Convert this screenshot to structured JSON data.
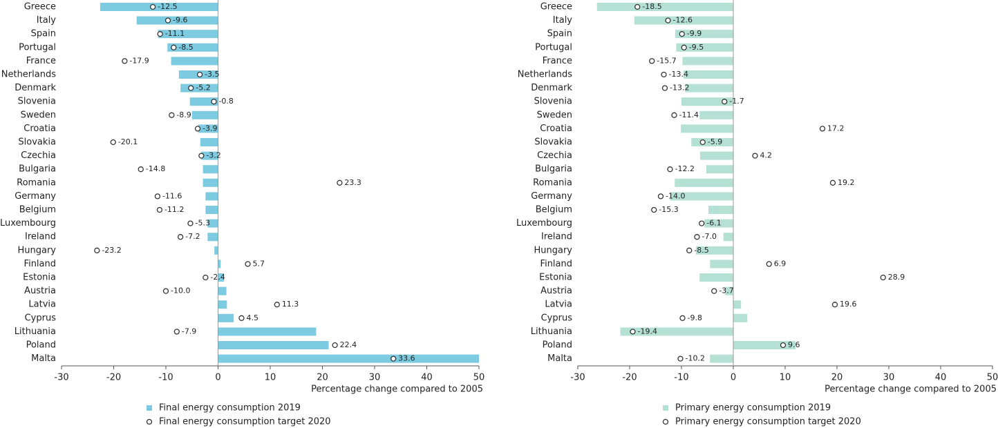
{
  "chart_data": [
    {
      "type": "hbar",
      "xlabel": "Percentage change compared to 2005",
      "categories": [
        "Greece",
        "Italy",
        "Spain",
        "Portugal",
        "France",
        "Netherlands",
        "Denmark",
        "Slovenia",
        "Sweden",
        "Croatia",
        "Slovakia",
        "Czechia",
        "Bulgaria",
        "Romania",
        "Germany",
        "Belgium",
        "Luxembourg",
        "Ireland",
        "Hungary",
        "Finland",
        "Estonia",
        "Austria",
        "Latvia",
        "Cyprus",
        "Lithuania",
        "Poland",
        "Malta"
      ],
      "series": [
        {
          "name": "Final energy consumption 2019",
          "color": "#7dcbe0",
          "marker": "bar",
          "values": [
            -22.6,
            -15.6,
            -11.5,
            -9.7,
            -9.0,
            -7.5,
            -7.2,
            -5.4,
            -5.0,
            -3.8,
            -3.4,
            -3.2,
            -2.9,
            -2.9,
            -2.4,
            -2.4,
            -2.0,
            -2.0,
            -0.7,
            0.5,
            1.1,
            1.6,
            1.7,
            3.0,
            18.8,
            21.2,
            50.0
          ]
        },
        {
          "name": "Final energy consumption target 2020",
          "color": "#333333",
          "marker": "circle",
          "values": [
            -12.5,
            -9.6,
            -11.1,
            -8.5,
            -17.9,
            -3.5,
            -5.2,
            -0.8,
            -8.9,
            -3.9,
            -20.1,
            -3.2,
            -14.8,
            23.3,
            -11.6,
            -11.2,
            -5.3,
            -7.2,
            -23.2,
            5.7,
            -2.4,
            -10.0,
            11.3,
            4.5,
            -7.9,
            22.4,
            33.6
          ],
          "value_labels": [
            "-12.5",
            "-9.6",
            "-11.1",
            "-8.5",
            "-17.9",
            "-3.5",
            "-5.2",
            "-0.8",
            "-8.9",
            "-3.9",
            "-20.1",
            "-3.2",
            "-14.8",
            "23.3",
            "-11.6",
            "-11.2",
            "-5.3",
            "-7.2",
            "-23.2",
            "5.7",
            "-2.4",
            "-10.0",
            "11.3",
            "4.5",
            "-7.9",
            "22.4",
            "33.6"
          ]
        }
      ],
      "xlim": [
        -30,
        50
      ],
      "xticks": [
        -30,
        -20,
        -10,
        0,
        10,
        20,
        30,
        40,
        50
      ]
    },
    {
      "type": "hbar",
      "xlabel": "Percentage change compared to 2005",
      "categories": [
        "Greece",
        "Italy",
        "Spain",
        "Portugal",
        "France",
        "Netherlands",
        "Denmark",
        "Slovenia",
        "Sweden",
        "Croatia",
        "Slovakia",
        "Czechia",
        "Bulgaria",
        "Romania",
        "Germany",
        "Belgium",
        "Luxembourg",
        "Ireland",
        "Hungary",
        "Finland",
        "Estonia",
        "Austria",
        "Latvia",
        "Cyprus",
        "Lithuania",
        "Poland",
        "Malta"
      ],
      "series": [
        {
          "name": "Primary energy consumption 2019",
          "color": "#b5e1d4",
          "marker": "bar",
          "values": [
            -26.3,
            -19.1,
            -11.2,
            -11.0,
            -9.8,
            -9.6,
            -9.3,
            -10.0,
            -6.5,
            -10.1,
            -8.1,
            -6.4,
            -5.2,
            -11.3,
            -12.2,
            -4.8,
            -5.6,
            -1.9,
            -7.2,
            -4.5,
            -6.5,
            -1.6,
            1.5,
            2.7,
            -21.8,
            12.0,
            -4.5
          ]
        },
        {
          "name": "Primary energy consumption target 2020",
          "color": "#333333",
          "marker": "circle",
          "values": [
            -18.5,
            -12.6,
            -9.9,
            -9.5,
            -15.7,
            -13.4,
            -13.2,
            -1.7,
            -11.4,
            17.2,
            -5.9,
            4.2,
            -12.2,
            19.2,
            -14.0,
            -15.3,
            -6.1,
            -7.0,
            -8.5,
            6.9,
            28.9,
            -3.7,
            19.6,
            -9.8,
            -19.4,
            9.6,
            -10.2
          ],
          "value_labels": [
            "-18.5",
            "-12.6",
            "-9.9",
            "-9.5",
            "-15.7",
            "-13.4",
            "-13.2",
            "-1.7",
            "-11.4",
            "17.2",
            "-5.9",
            "4.2",
            "-12.2",
            "19.2",
            "-14.0",
            "-15.3",
            "-6.1",
            "-7.0",
            "-8.5",
            "6.9",
            "28.9",
            "-3.7",
            "19.6",
            "-9.8",
            "-19.4",
            "9.6",
            "-10.2"
          ]
        }
      ],
      "xlim": [
        -30,
        50
      ],
      "xticks": [
        -30,
        -20,
        -10,
        0,
        10,
        20,
        30,
        40,
        50
      ]
    }
  ]
}
